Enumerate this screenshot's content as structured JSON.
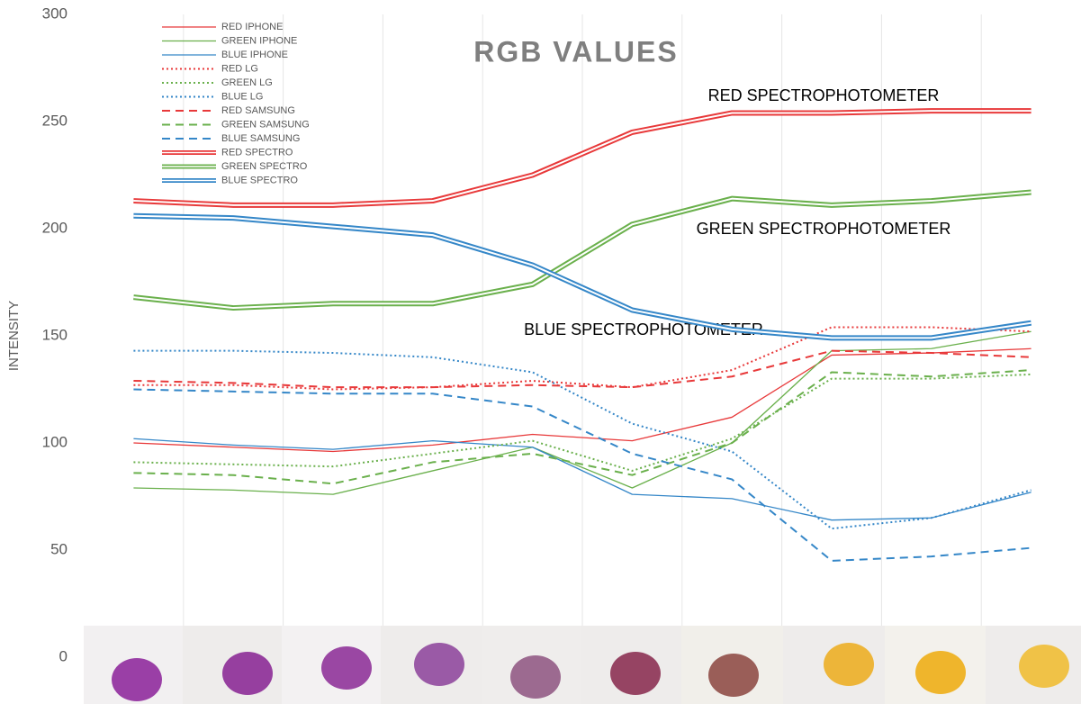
{
  "chart_data": {
    "type": "line",
    "title": "RGB VALUES",
    "ylabel": "INTENSITY",
    "categories": [
      null,
      null,
      null,
      null,
      null,
      null,
      null,
      null,
      null,
      null
    ],
    "ylim": [
      0,
      300
    ],
    "yticks": [
      0,
      50,
      100,
      150,
      200,
      250,
      300
    ],
    "legend": "top-left",
    "annotations": [
      "RED SPECTROPHOTOMETER",
      "GREEN SPECTROPHOTOMETER",
      "BLUE SPECTROPHOTOMETER"
    ],
    "series": [
      {
        "name": "RED IPHONE",
        "color": "#e8393a",
        "style": "solid",
        "values": [
          100,
          98,
          96,
          99,
          104,
          101,
          112,
          141,
          142,
          144
        ]
      },
      {
        "name": "GREEN IPHONE",
        "color": "#6ab04c",
        "style": "solid",
        "values": [
          79,
          78,
          76,
          87,
          98,
          79,
          100,
          143,
          144,
          152
        ]
      },
      {
        "name": "BLUE IPHONE",
        "color": "#3587c8",
        "style": "solid",
        "values": [
          102,
          99,
          97,
          101,
          98,
          76,
          74,
          64,
          65,
          77
        ]
      },
      {
        "name": "RED LG",
        "color": "#e8393a",
        "style": "dotted",
        "values": [
          127,
          127,
          125,
          126,
          129,
          126,
          134,
          154,
          154,
          152
        ]
      },
      {
        "name": "GREEN LG",
        "color": "#6ab04c",
        "style": "dotted",
        "values": [
          91,
          90,
          89,
          95,
          101,
          87,
          102,
          130,
          130,
          132
        ]
      },
      {
        "name": "BLUE LG",
        "color": "#3587c8",
        "style": "dotted",
        "values": [
          143,
          143,
          142,
          140,
          133,
          109,
          96,
          60,
          65,
          78
        ]
      },
      {
        "name": "RED SAMSUNG",
        "color": "#e8393a",
        "style": "dashed",
        "values": [
          129,
          128,
          126,
          126,
          127,
          126,
          131,
          143,
          142,
          140
        ]
      },
      {
        "name": "GREEN SAMSUNG",
        "color": "#6ab04c",
        "style": "dashed",
        "values": [
          86,
          85,
          81,
          91,
          95,
          85,
          100,
          133,
          131,
          134
        ]
      },
      {
        "name": "BLUE SAMSUNG",
        "color": "#3587c8",
        "style": "dashed",
        "values": [
          125,
          124,
          123,
          123,
          117,
          95,
          83,
          45,
          47,
          51
        ]
      },
      {
        "name": "RED SPECTRO",
        "color": "#e8393a",
        "style": "double",
        "values": [
          213,
          211,
          211,
          213,
          225,
          245,
          254,
          254,
          255,
          255
        ]
      },
      {
        "name": "GREEN SPECTRO",
        "color": "#6ab04c",
        "style": "double",
        "values": [
          168,
          163,
          165,
          165,
          174,
          202,
          214,
          211,
          213,
          217
        ]
      },
      {
        "name": "BLUE SPECTRO",
        "color": "#3587c8",
        "style": "double",
        "values": [
          206,
          205,
          201,
          197,
          183,
          162,
          153,
          149,
          149,
          156
        ]
      }
    ]
  }
}
